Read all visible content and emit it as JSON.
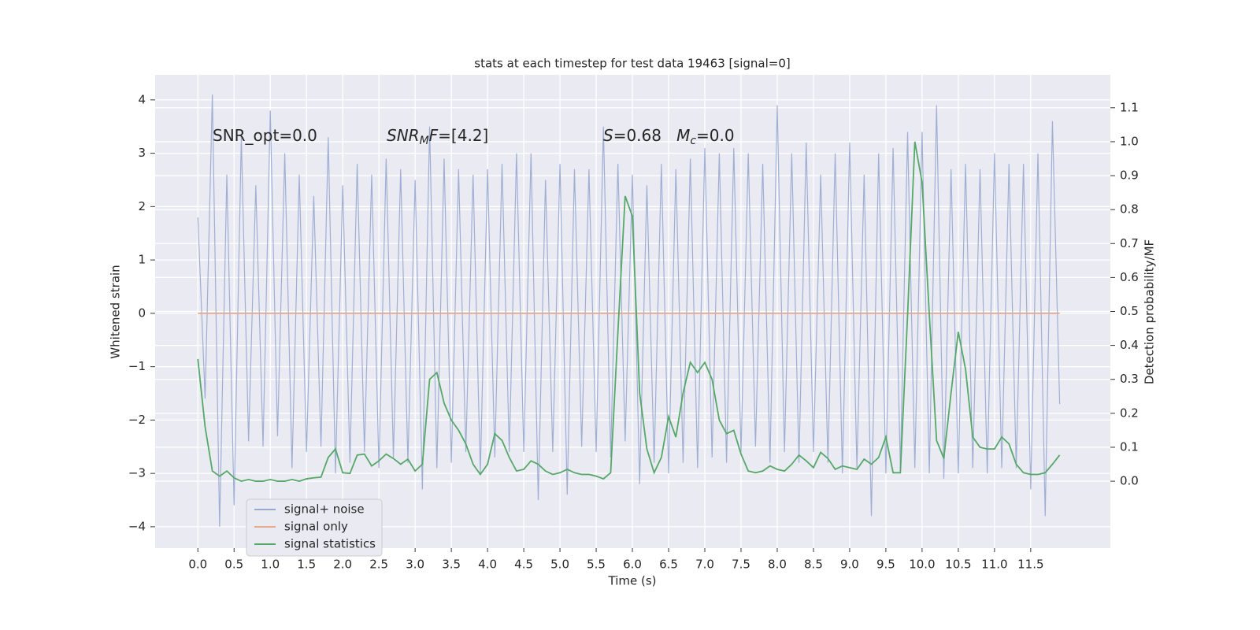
{
  "chart_data": {
    "type": "line",
    "title": "stats at each timestep for test data 19463 [signal=0]",
    "xlabel": "Time (s)",
    "ylabel": "Whitened strain",
    "y2label": "Detection probability/MF",
    "annotations": [
      [
        "SNR_opt=0.0"
      ],
      [
        "SNR",
        "M",
        "F",
        "=[4.2]"
      ],
      [
        "S",
        "=0.68   ",
        "M",
        "c",
        "=0.0"
      ]
    ],
    "x": [
      0.0,
      0.1,
      0.2,
      0.3,
      0.4,
      0.5,
      0.6,
      0.7,
      0.8,
      0.9,
      1.0,
      1.1,
      1.2,
      1.3,
      1.4,
      1.5,
      1.6,
      1.7,
      1.8,
      1.9,
      2.0,
      2.1,
      2.2,
      2.3,
      2.4,
      2.5,
      2.6,
      2.7,
      2.8,
      2.9,
      3.0,
      3.1,
      3.2,
      3.3,
      3.4,
      3.5,
      3.6,
      3.7,
      3.8,
      3.9,
      4.0,
      4.1,
      4.2,
      4.3,
      4.4,
      4.5,
      4.6,
      4.7,
      4.8,
      4.9,
      5.0,
      5.1,
      5.2,
      5.3,
      5.4,
      5.5,
      5.6,
      5.7,
      5.8,
      5.9,
      6.0,
      6.1,
      6.2,
      6.3,
      6.4,
      6.5,
      6.6,
      6.7,
      6.8,
      6.9,
      7.0,
      7.1,
      7.2,
      7.3,
      7.4,
      7.5,
      7.6,
      7.7,
      7.8,
      7.9,
      8.0,
      8.1,
      8.2,
      8.3,
      8.4,
      8.5,
      8.6,
      8.7,
      8.8,
      8.9,
      9.0,
      9.1,
      9.2,
      9.3,
      9.4,
      9.5,
      9.6,
      9.7,
      9.8,
      9.9,
      10.0,
      10.1,
      10.2,
      10.3,
      10.4,
      10.5,
      10.6,
      10.7,
      10.8,
      10.9,
      11.0,
      11.1,
      11.2,
      11.3,
      11.4,
      11.5,
      11.6,
      11.7,
      11.8,
      11.9
    ],
    "series": [
      {
        "name": "signal+ noise",
        "color": "#97a9cf",
        "values": [
          1.8,
          -1.6,
          4.1,
          -4.0,
          2.6,
          -3.6,
          3.3,
          -2.4,
          2.4,
          -2.5,
          3.8,
          -2.3,
          3.0,
          -2.9,
          2.6,
          -2.6,
          2.2,
          -2.5,
          3.3,
          -3.0,
          2.4,
          -2.8,
          2.8,
          -2.6,
          2.6,
          -2.9,
          2.9,
          -2.7,
          2.7,
          -2.8,
          2.5,
          -3.3,
          3.5,
          -2.9,
          2.9,
          -2.8,
          2.7,
          -2.6,
          2.6,
          -3.0,
          2.7,
          -2.7,
          2.8,
          -2.6,
          3.0,
          -2.6,
          3.0,
          -3.5,
          2.5,
          -2.6,
          2.8,
          -3.4,
          2.7,
          -2.5,
          2.7,
          -2.6,
          3.5,
          -2.7,
          2.8,
          -2.4,
          2.6,
          -3.2,
          2.4,
          -2.8,
          2.8,
          -3.0,
          2.7,
          -2.8,
          2.9,
          -2.9,
          3.1,
          -2.7,
          3.0,
          -2.8,
          3.1,
          -2.6,
          3.0,
          -2.5,
          2.8,
          -2.8,
          3.9,
          -2.6,
          3.0,
          -2.8,
          3.2,
          -2.6,
          2.6,
          -2.8,
          3.0,
          -3.0,
          3.2,
          -2.9,
          2.6,
          -3.8,
          3.0,
          -3.0,
          3.1,
          -2.9,
          3.4,
          -2.9,
          3.4,
          -3.0,
          3.9,
          -3.1,
          2.7,
          -3.0,
          2.8,
          -2.9,
          2.7,
          -3.0,
          3.0,
          -2.9,
          2.8,
          -2.9,
          2.8,
          -3.3,
          3.0,
          -3.8,
          3.6,
          -1.7
        ]
      },
      {
        "name": "signal only",
        "color": "#e8a98e",
        "values": [
          0,
          0,
          0,
          0,
          0,
          0,
          0,
          0,
          0,
          0,
          0,
          0,
          0,
          0,
          0,
          0,
          0,
          0,
          0,
          0,
          0,
          0,
          0,
          0,
          0,
          0,
          0,
          0,
          0,
          0,
          0,
          0,
          0,
          0,
          0,
          0,
          0,
          0,
          0,
          0,
          0,
          0,
          0,
          0,
          0,
          0,
          0,
          0,
          0,
          0,
          0,
          0,
          0,
          0,
          0,
          0,
          0,
          0,
          0,
          0,
          0,
          0,
          0,
          0,
          0,
          0,
          0,
          0,
          0,
          0,
          0,
          0,
          0,
          0,
          0,
          0,
          0,
          0,
          0,
          0,
          0,
          0,
          0,
          0,
          0,
          0,
          0,
          0,
          0,
          0,
          0,
          0,
          0,
          0,
          0,
          0,
          0,
          0,
          0,
          0,
          0,
          0,
          0,
          0,
          0,
          0,
          0,
          0,
          0,
          0,
          0,
          0,
          0,
          0,
          0,
          0,
          0,
          0,
          0,
          0
        ]
      },
      {
        "name": "signal statistics",
        "color": "#55a868",
        "axis": "y2",
        "values": [
          0.36,
          0.16,
          0.03,
          0.015,
          0.03,
          0.01,
          0.0,
          0.005,
          0.0,
          0.0,
          0.005,
          0.0,
          0.0,
          0.005,
          0.0,
          0.007,
          0.01,
          0.012,
          0.07,
          0.095,
          0.025,
          0.023,
          0.077,
          0.08,
          0.045,
          0.06,
          0.08,
          0.067,
          0.05,
          0.065,
          0.03,
          0.05,
          0.3,
          0.32,
          0.23,
          0.18,
          0.15,
          0.11,
          0.05,
          0.02,
          0.05,
          0.14,
          0.12,
          0.07,
          0.03,
          0.035,
          0.06,
          0.05,
          0.03,
          0.02,
          0.025,
          0.035,
          0.025,
          0.02,
          0.02,
          0.015,
          0.007,
          0.025,
          0.44,
          0.84,
          0.78,
          0.26,
          0.095,
          0.025,
          0.07,
          0.19,
          0.13,
          0.26,
          0.35,
          0.32,
          0.35,
          0.3,
          0.18,
          0.14,
          0.15,
          0.08,
          0.03,
          0.025,
          0.03,
          0.045,
          0.035,
          0.03,
          0.05,
          0.077,
          0.06,
          0.04,
          0.085,
          0.067,
          0.035,
          0.045,
          0.04,
          0.035,
          0.065,
          0.05,
          0.07,
          0.13,
          0.025,
          0.025,
          0.49,
          1.0,
          0.88,
          0.49,
          0.12,
          0.067,
          0.26,
          0.44,
          0.33,
          0.13,
          0.1,
          0.095,
          0.095,
          0.13,
          0.11,
          0.05,
          0.025,
          0.02,
          0.02,
          0.025,
          0.05,
          0.077
        ]
      }
    ],
    "xlim": [
      -0.59,
      12.6
    ],
    "ylim": [
      -4.4,
      4.47
    ],
    "y2lim": [
      -0.197,
      1.197
    ],
    "xticks": [
      {
        "value": 0,
        "label": "0.0"
      },
      0.5,
      {
        "value": 1,
        "label": "1.0"
      },
      1.5,
      {
        "value": 2,
        "label": "2.0"
      },
      2.5,
      {
        "value": 3,
        "label": "3.0"
      },
      3.5,
      {
        "value": 4,
        "label": "4.0"
      },
      4.5,
      {
        "value": 5,
        "label": "5.0"
      },
      5.5,
      {
        "value": 6,
        "label": "6.0"
      },
      6.5,
      {
        "value": 7,
        "label": "7.0"
      },
      7.5,
      {
        "value": 8,
        "label": "8.0"
      },
      8.5,
      {
        "value": 9,
        "label": "9.0"
      },
      9.5,
      {
        "value": 10,
        "label": "10.0"
      },
      10.5,
      {
        "value": 11,
        "label": "11.0"
      },
      11.5
    ],
    "yticks": [
      4,
      3,
      2,
      1,
      0,
      {
        "value": -1,
        "label": "−1"
      },
      {
        "value": -2,
        "label": "−2"
      },
      {
        "value": -3,
        "label": "−3"
      },
      {
        "value": -4,
        "label": "−4"
      }
    ],
    "y2ticks": [
      1.1,
      {
        "value": 1,
        "label": "1.0"
      },
      0.9,
      0.8,
      0.7,
      0.6,
      0.5,
      0.4,
      0.3,
      0.2,
      0.1,
      {
        "value": 0,
        "label": "0.0"
      }
    ],
    "grid": true,
    "legend": "lower left"
  }
}
